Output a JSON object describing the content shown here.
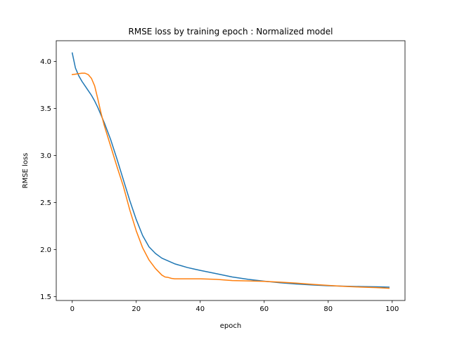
{
  "chart_data": {
    "type": "line",
    "title": "RMSE loss by training epoch : Normalized model",
    "xlabel": "epoch",
    "ylabel": "RMSE loss",
    "xlim": [
      -5,
      104
    ],
    "ylim": [
      1.46,
      4.22
    ],
    "xticks": [
      0,
      20,
      40,
      60,
      80,
      100
    ],
    "yticks": [
      1.5,
      2.0,
      2.5,
      3.0,
      3.5,
      4.0
    ],
    "x_tick_labels": [
      "0",
      "20",
      "40",
      "60",
      "80",
      "100"
    ],
    "y_tick_labels": [
      "1.5",
      "2.0",
      "2.5",
      "3.0",
      "3.5",
      "4.0"
    ],
    "grid": false,
    "legend": false,
    "series": [
      {
        "color": "#1f77b4",
        "x": [
          0,
          1,
          2,
          3,
          4,
          5,
          6,
          7,
          8,
          9,
          10,
          12,
          14,
          16,
          18,
          20,
          22,
          24,
          26,
          28,
          30,
          32,
          34,
          36,
          38,
          40,
          45,
          50,
          55,
          60,
          65,
          70,
          75,
          80,
          85,
          90,
          95,
          99
        ],
        "y": [
          4.09,
          3.93,
          3.85,
          3.79,
          3.74,
          3.69,
          3.64,
          3.58,
          3.51,
          3.43,
          3.35,
          3.17,
          2.96,
          2.74,
          2.52,
          2.32,
          2.15,
          2.03,
          1.96,
          1.91,
          1.88,
          1.85,
          1.83,
          1.81,
          1.795,
          1.78,
          1.745,
          1.71,
          1.685,
          1.665,
          1.648,
          1.635,
          1.625,
          1.617,
          1.612,
          1.608,
          1.605,
          1.602
        ]
      },
      {
        "color": "#ff7f0e",
        "x": [
          0,
          1,
          2,
          3,
          4,
          5,
          6,
          7,
          8,
          9,
          10,
          12,
          14,
          16,
          18,
          20,
          22,
          24,
          26,
          28,
          29,
          30,
          31,
          32,
          35,
          40,
          45,
          50,
          55,
          60,
          65,
          70,
          75,
          80,
          85,
          90,
          95,
          99
        ],
        "y": [
          3.86,
          3.865,
          3.87,
          3.875,
          3.875,
          3.86,
          3.82,
          3.74,
          3.6,
          3.45,
          3.32,
          3.1,
          2.88,
          2.67,
          2.42,
          2.2,
          2.02,
          1.89,
          1.8,
          1.73,
          1.71,
          1.705,
          1.695,
          1.69,
          1.69,
          1.69,
          1.685,
          1.672,
          1.668,
          1.663,
          1.655,
          1.645,
          1.632,
          1.62,
          1.61,
          1.603,
          1.597,
          1.59
        ]
      }
    ]
  }
}
